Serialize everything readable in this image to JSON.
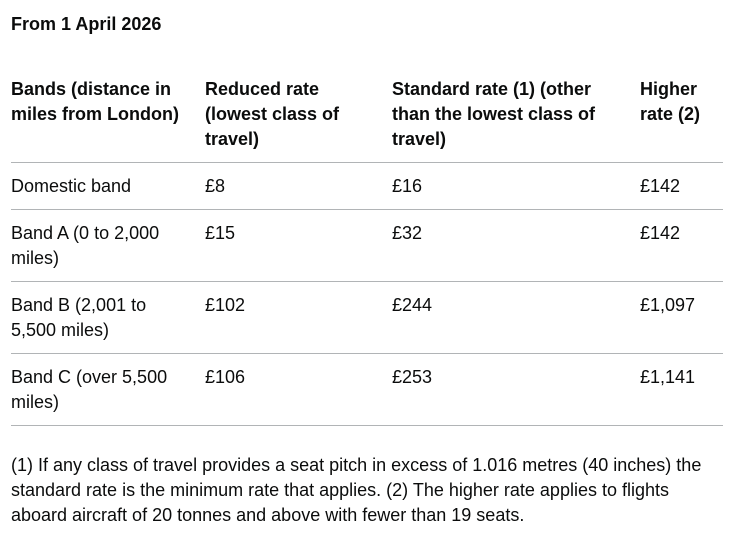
{
  "heading": "From 1 April 2026",
  "table": {
    "headers": [
      "Bands (distance in miles from London)",
      "Reduced rate (lowest class of travel)",
      "Standard rate (1) (other than the lowest class of travel)",
      "Higher rate (2)"
    ],
    "rows": [
      [
        "Domestic band",
        "£8",
        "£16",
        "£142"
      ],
      [
        "Band A (0 to 2,000 miles)",
        "£15",
        "£32",
        "£142"
      ],
      [
        "Band B (2,001 to 5,500 miles)",
        "£102",
        "£244",
        "£1,097"
      ],
      [
        "Band C (over 5,500 miles)",
        "£106",
        "£253",
        "£1,141"
      ]
    ]
  },
  "footnote": "(1) If any class of travel provides a seat pitch in excess of 1.016 metres (40 inches) the standard rate is the minimum rate that applies. (2) The higher rate applies to flights aboard aircraft of 20 tonnes and above with fewer than 19 seats."
}
